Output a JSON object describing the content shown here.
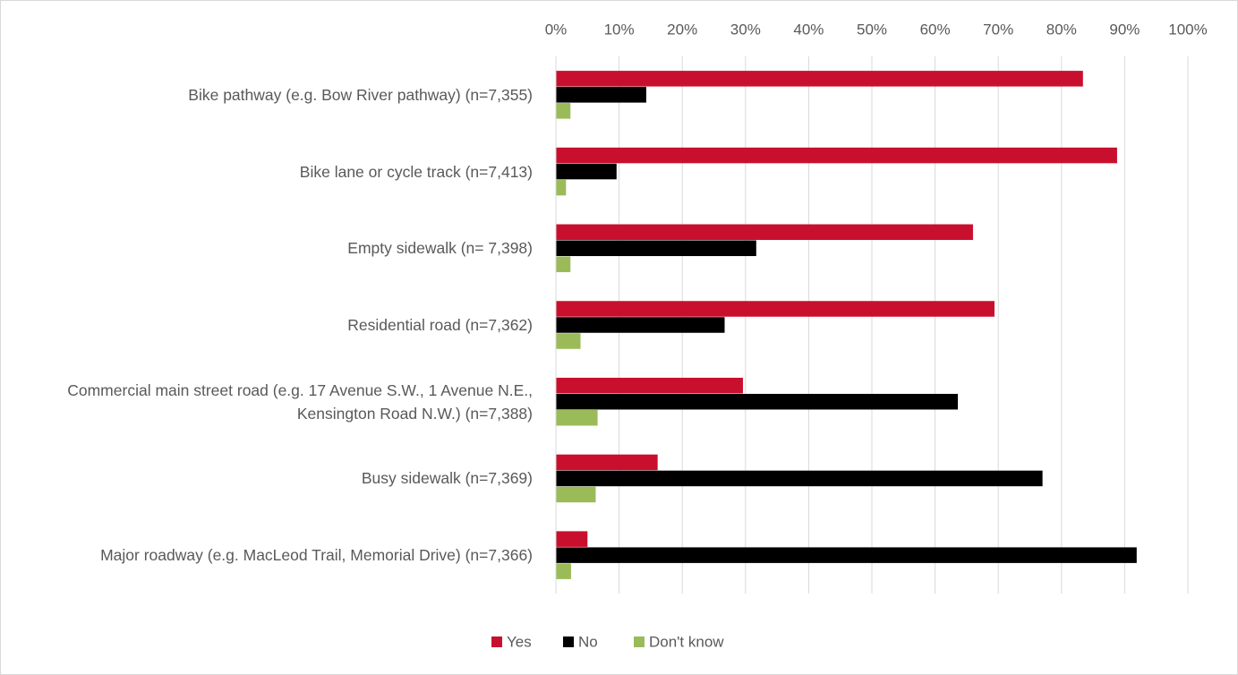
{
  "chart_data": {
    "type": "bar",
    "orientation": "horizontal",
    "categories": [
      "Bike pathway (e.g. Bow River pathway) (n=7,355)",
      "Bike lane or cycle track (n=7,413)",
      "Empty sidewalk (n= 7,398)",
      "Residential road (n=7,362)",
      "Commercial main street road (e.g. 17 Avenue S.W., 1 Avenue N.E., Kensington Road N.W.) (n=7,388)",
      "Busy sidewalk (n=7,369)",
      "Major roadway (e.g. MacLeod Trail, Memorial Drive) (n=7,366)"
    ],
    "series": [
      {
        "name": "Yes",
        "color": "#c8102e",
        "values": [
          83.4,
          88.8,
          66,
          69.4,
          29.6,
          16.1,
          5
        ]
      },
      {
        "name": "No",
        "color": "#000000",
        "values": [
          14.3,
          9.6,
          31.7,
          26.7,
          63.6,
          77,
          91.9
        ]
      },
      {
        "name": "Don't know",
        "color": "#9bbb59",
        "values": [
          2.3,
          1.6,
          2.3,
          3.9,
          6.6,
          6.3,
          2.4
        ]
      }
    ],
    "xlim": [
      0,
      100
    ],
    "xticks": [
      {
        "value": 0,
        "label": "0%"
      },
      {
        "value": 10,
        "label": "10%"
      },
      {
        "value": 20,
        "label": "20%"
      },
      {
        "value": 30,
        "label": "30%"
      },
      {
        "value": 40,
        "label": "40%"
      },
      {
        "value": 50,
        "label": "50%"
      },
      {
        "value": 60,
        "label": "60%"
      },
      {
        "value": 70,
        "label": "70%"
      },
      {
        "value": 80,
        "label": "80%"
      },
      {
        "value": 90,
        "label": "90%"
      },
      {
        "value": 100,
        "label": "100%"
      }
    ],
    "grid": true,
    "legend": "bottom"
  }
}
